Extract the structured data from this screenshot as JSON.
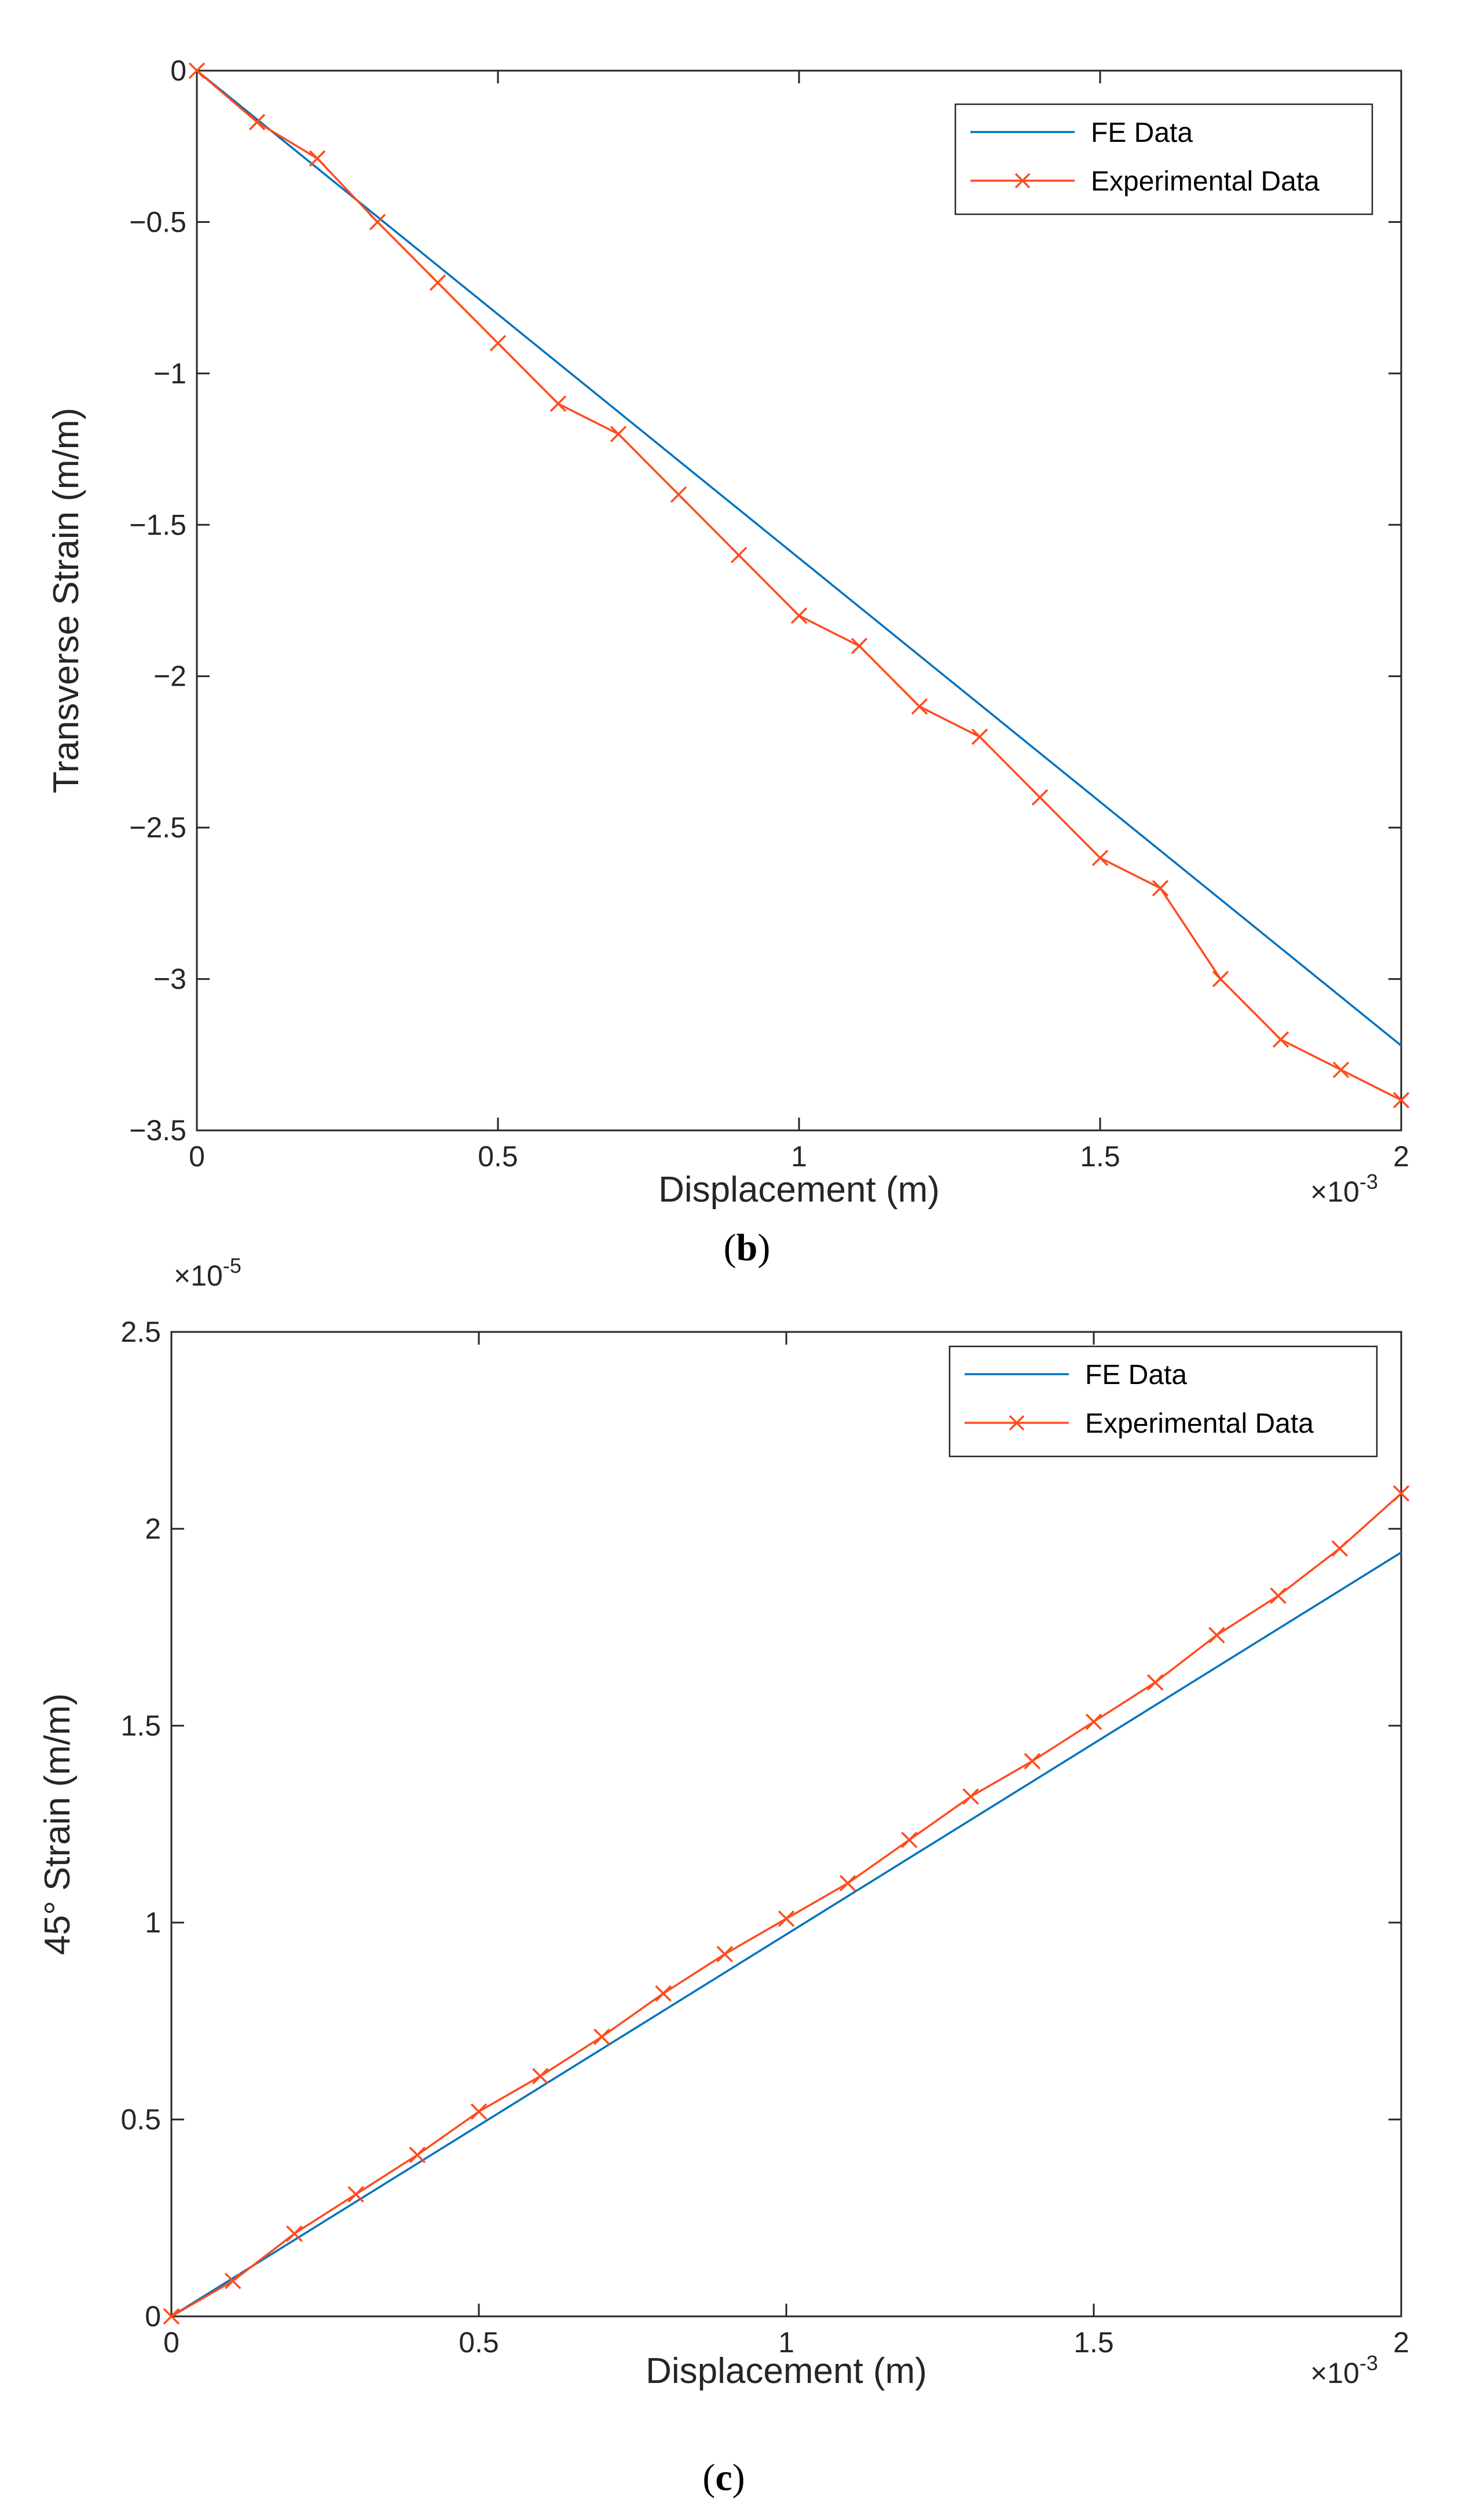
{
  "colors": {
    "fe": "#0072BD",
    "experimental": "#FF4B1E",
    "axis": "#262626"
  },
  "chart_data": [
    {
      "type": "line",
      "panel_label": "b",
      "xlabel": "Displacement (m)",
      "ylabel": "Transverse Strain (m/m)",
      "x_multiplier": "×10",
      "x_exponent": "-3",
      "y_multiplier": "",
      "y_exponent": "",
      "xlim": [
        0,
        2
      ],
      "ylim": [
        -3.5,
        0
      ],
      "xticks": [
        0,
        0.5,
        1,
        1.5,
        2
      ],
      "xtick_labels": [
        "0",
        "0.5",
        "1",
        "1.5",
        "2"
      ],
      "yticks": [
        0,
        -0.5,
        -1,
        -1.5,
        -2,
        -2.5,
        -3,
        -3.5
      ],
      "ytick_labels": [
        "0",
        "−0.5",
        "−1",
        "−1.5",
        "−2",
        "−2.5",
        "−3",
        "−3.5"
      ],
      "legend_position": "top-right",
      "series": [
        {
          "name": "FE Data",
          "marker": "none",
          "x": [
            0,
            2
          ],
          "y": [
            0,
            -3.22
          ]
        },
        {
          "name": "Experimental Data",
          "marker": "x",
          "x": [
            0,
            0.1,
            0.2,
            0.3,
            0.4,
            0.5,
            0.6,
            0.7,
            0.8,
            0.9,
            1.0,
            1.1,
            1.2,
            1.3,
            1.4,
            1.5,
            1.6,
            1.7,
            1.8,
            1.9,
            2.0
          ],
          "y": [
            0,
            -0.17,
            -0.29,
            -0.5,
            -0.7,
            -0.9,
            -1.1,
            -1.2,
            -1.4,
            -1.6,
            -1.8,
            -1.9,
            -2.1,
            -2.2,
            -2.4,
            -2.6,
            -2.7,
            -3.0,
            -3.2,
            -3.3,
            -3.4
          ]
        }
      ]
    },
    {
      "type": "line",
      "panel_label": "c",
      "xlabel": "Displacement (m)",
      "ylabel": "45° Strain (m/m)",
      "x_multiplier": "×10",
      "x_exponent": "-3",
      "y_multiplier": "×10",
      "y_exponent": "-5",
      "xlim": [
        0,
        2
      ],
      "ylim": [
        0,
        2.5
      ],
      "xticks": [
        0,
        0.5,
        1,
        1.5,
        2
      ],
      "xtick_labels": [
        "0",
        "0.5",
        "1",
        "1.5",
        "2"
      ],
      "yticks": [
        0,
        0.5,
        1,
        1.5,
        2,
        2.5
      ],
      "ytick_labels": [
        "0",
        "0.5",
        "1",
        "1.5",
        "2",
        "2.5"
      ],
      "legend_position": "top-right",
      "series": [
        {
          "name": "FE Data",
          "marker": "none",
          "x": [
            0,
            2
          ],
          "y": [
            0,
            1.94
          ]
        },
        {
          "name": "Experimental Data",
          "marker": "x",
          "x": [
            0,
            0.1,
            0.2,
            0.3,
            0.4,
            0.5,
            0.6,
            0.7,
            0.8,
            0.9,
            1.0,
            1.1,
            1.2,
            1.3,
            1.4,
            1.5,
            1.6,
            1.7,
            1.8,
            1.9,
            2.0
          ],
          "y": [
            0,
            0.09,
            0.21,
            0.31,
            0.41,
            0.52,
            0.61,
            0.71,
            0.82,
            0.92,
            1.01,
            1.1,
            1.21,
            1.32,
            1.41,
            1.51,
            1.61,
            1.73,
            1.83,
            1.95,
            2.09
          ]
        }
      ]
    }
  ]
}
